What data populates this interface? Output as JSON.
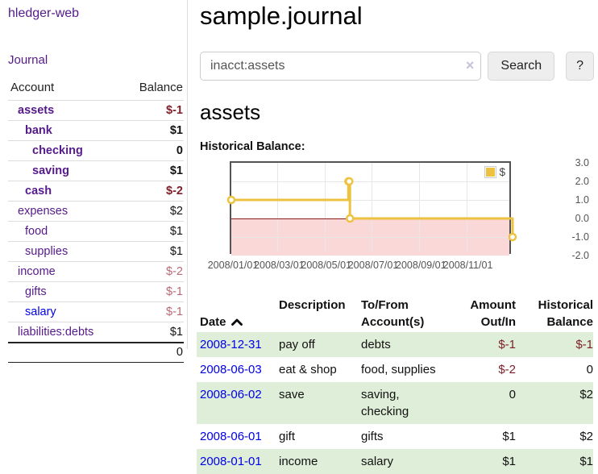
{
  "colors": {
    "link_purple": "#551a8b",
    "link_blue": "#0000ee",
    "date_link_blue": "#0000e6",
    "negative_strong": "#7c1f28",
    "negative_light": "#b56a74",
    "row_green": "#dfeed9",
    "series_yellow": "#edc240",
    "chart_negative_fill": "#fbd8d8",
    "chart_zero_line": "#8b1a1a",
    "chart_border": "#545454"
  },
  "sidebar": {
    "brand": "hledger-web",
    "journal_link": "Journal",
    "accounts_table": {
      "headers": {
        "account": "Account",
        "balance": "Balance"
      },
      "rows": [
        {
          "name": "assets",
          "indent": 1,
          "bold": true,
          "balance": "$-1",
          "neg": "strong"
        },
        {
          "name": "bank",
          "indent": 2,
          "bold": true,
          "balance": "$1"
        },
        {
          "name": "checking",
          "indent": 3,
          "bold": true,
          "balance": "0"
        },
        {
          "name": "saving",
          "indent": 3,
          "bold": true,
          "balance": "$1"
        },
        {
          "name": "cash",
          "indent": 2,
          "bold": true,
          "balance": "$-2",
          "neg": "strong"
        },
        {
          "name": "expenses",
          "indent": 1,
          "bold": false,
          "balance": "$2"
        },
        {
          "name": "food",
          "indent": 2,
          "bold": false,
          "balance": "$1"
        },
        {
          "name": "supplies",
          "indent": 2,
          "bold": false,
          "balance": "$1"
        },
        {
          "name": "income",
          "indent": 1,
          "bold": false,
          "balance": "$-2",
          "neg": "light"
        },
        {
          "name": "gifts",
          "indent": 2,
          "bold": false,
          "balance": "$-1",
          "neg": "light"
        },
        {
          "name": "salary",
          "indent": 2,
          "bold": false,
          "balance": "$-1",
          "neg": "light",
          "blue": true
        },
        {
          "name": "liabilities:debts",
          "indent": 1,
          "bold": false,
          "balance": "$1"
        }
      ],
      "total": "0"
    }
  },
  "header": {
    "title": "sample.journal"
  },
  "search": {
    "value": "inacct:assets",
    "clear_icon": "×",
    "button_label": "Search",
    "help_label": "?"
  },
  "account_page": {
    "title": "assets",
    "chart_label": "Historical Balance:"
  },
  "chart_data": {
    "type": "line",
    "title": "Historical Balance of assets",
    "step": true,
    "x": [
      "2008-01-01",
      "2008-06-01",
      "2008-06-02",
      "2008-06-03",
      "2008-12-31"
    ],
    "series": [
      {
        "name": "$",
        "color": "#edc240",
        "values": [
          1,
          2,
          2,
          0,
          -1
        ]
      }
    ],
    "xlim": [
      "2008-01-01",
      "2008-12-31"
    ],
    "ylim": [
      -2,
      3
    ],
    "yticks": [
      3,
      2,
      1,
      0,
      -1,
      -2
    ],
    "ytick_labels": [
      "3.0",
      "2.0",
      "1.0",
      "0.0",
      "-1.0",
      "-2.0"
    ],
    "xticks": [
      "2008-01-01",
      "2008-03-01",
      "2008-05-01",
      "2008-07-01",
      "2008-09-01",
      "2008-11-01"
    ],
    "xtick_labels": [
      "2008/01/01",
      "2008/03/01",
      "2008/05/01",
      "2008/07/01",
      "2008/09/01",
      "2008/11/01"
    ],
    "grid": true,
    "legend": {
      "label": "$",
      "position": "top-right"
    }
  },
  "transactions": {
    "headers": {
      "date": "Date",
      "description": "Description",
      "tofrom": "To/From\nAccount(s)",
      "amount": "Amount\nOut/In",
      "historical": "Historical\nBalance"
    },
    "sort": {
      "column": "date",
      "direction": "ascending-arrow"
    },
    "rows": [
      {
        "date": "2008-12-31",
        "description": "pay off",
        "accounts": [
          "debts"
        ],
        "amount": "$-1",
        "amount_neg": true,
        "balance": "$-1",
        "balance_neg": true,
        "green": true
      },
      {
        "date": "2008-06-03",
        "description": "eat & shop",
        "accounts": [
          "food, supplies"
        ],
        "amount": "$-2",
        "amount_neg": true,
        "balance": "0",
        "balance_neg": false,
        "green": false
      },
      {
        "date": "2008-06-02",
        "description": "save",
        "accounts": [
          "saving,",
          "checking"
        ],
        "amount": "0",
        "amount_neg": false,
        "balance": "$2",
        "balance_neg": false,
        "green": true
      },
      {
        "date": "2008-06-01",
        "description": "gift",
        "accounts": [
          "gifts"
        ],
        "amount": "$1",
        "amount_neg": false,
        "balance": "$2",
        "balance_neg": false,
        "green": false
      },
      {
        "date": "2008-01-01",
        "description": "income",
        "accounts": [
          "salary"
        ],
        "amount": "$1",
        "amount_neg": false,
        "balance": "$1",
        "balance_neg": false,
        "green": true
      }
    ]
  }
}
